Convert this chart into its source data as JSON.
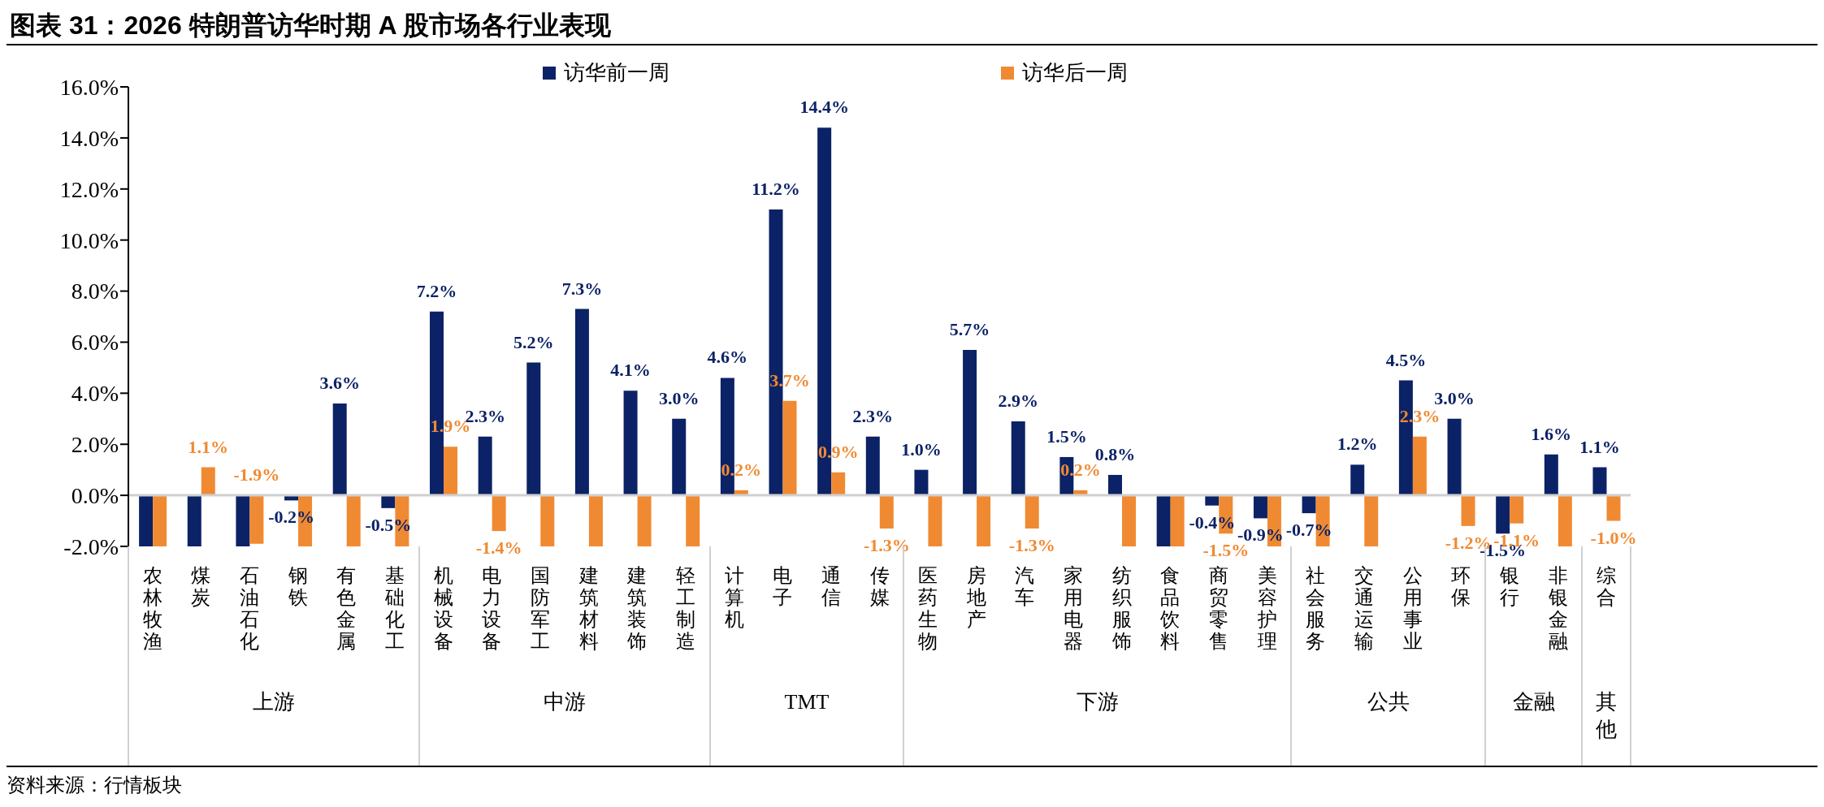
{
  "chart_data": {
    "type": "bar",
    "title": "图表 31：2026 特朗普访华时期 A 股市场各行业表现",
    "categories": [
      "农林牧渔",
      "煤炭",
      "石油石化",
      "钢铁",
      "有色金属",
      "基础化工",
      "机械设备",
      "电力设备",
      "国防军工",
      "建筑材料",
      "建筑装饰",
      "轻工制造",
      "计算机",
      "电子",
      "通信",
      "传媒",
      "医药生物",
      "房地产",
      "汽车",
      "家用电器",
      "纺织服饰",
      "食品饮料",
      "商贸零售",
      "美容护理",
      "社会服务",
      "交通运输",
      "公用事业",
      "环保",
      "银行",
      "非银金融",
      "综合"
    ],
    "series": [
      {
        "name": "访华前一周",
        "color": "#0c2266",
        "values": [
          -2,
          -2,
          -2,
          -0.2,
          3.6,
          -0.5,
          7.2,
          2.3,
          5.2,
          7.3,
          4.1,
          3.0,
          4.6,
          11.2,
          14.4,
          2.3,
          1.0,
          5.7,
          2.9,
          1.5,
          0.8,
          -2,
          -0.4,
          -0.9,
          -0.7,
          1.2,
          4.5,
          3.0,
          -1.5,
          1.6,
          1.1
        ],
        "value_labels": [
          null,
          null,
          null,
          "-0.2%",
          "3.6%",
          "-0.5%",
          "7.2%",
          "2.3%",
          "5.2%",
          "7.3%",
          "4.1%",
          "3.0%",
          "4.6%",
          "11.2%",
          "14.4%",
          "2.3%",
          "1.0%",
          "5.7%",
          "2.9%",
          "1.5%",
          "0.8%",
          null,
          "-0.4%",
          "-0.9%",
          "-0.7%",
          "1.2%",
          "4.5%",
          "3.0%",
          "-1.5%",
          "1.6%",
          "1.1%"
        ]
      },
      {
        "name": "访华后一周",
        "color": "#f08a32",
        "values": [
          -2,
          1.1,
          -1.9,
          -2,
          -2,
          -2,
          1.9,
          -1.4,
          -2,
          -2,
          -2,
          -2,
          0.2,
          3.7,
          0.9,
          -1.3,
          -2,
          -2,
          -1.3,
          0.2,
          -2,
          -2,
          -1.5,
          -2,
          -2,
          -2,
          2.3,
          -1.2,
          -1.1,
          -2,
          -1.0
        ],
        "value_labels": [
          null,
          "1.1%",
          "-1.9%",
          null,
          null,
          null,
          "1.9%",
          "-1.4%",
          null,
          null,
          null,
          null,
          "0.2%",
          "3.7%",
          "0.9%",
          "-1.3%",
          null,
          null,
          "-1.3%",
          "0.2%",
          null,
          null,
          "-1.5%",
          null,
          null,
          null,
          "2.3%",
          "-1.2%",
          "-1.1%",
          null,
          "-1.0%"
        ]
      }
    ],
    "ylim": [
      -2,
      16
    ],
    "yticks": [
      {
        "value": -2,
        "label": "-2.0%"
      },
      {
        "value": 0,
        "label": "0.0%"
      },
      {
        "value": 2,
        "label": "2.0%"
      },
      {
        "value": 4,
        "label": "4.0%"
      },
      {
        "value": 6,
        "label": "6.0%"
      },
      {
        "value": 8,
        "label": "8.0%"
      },
      {
        "value": 10,
        "label": "10.0%"
      },
      {
        "value": 12,
        "label": "12.0%"
      },
      {
        "value": 14,
        "label": "14.0%"
      },
      {
        "value": 16,
        "label": "16.0%"
      }
    ],
    "grid": false,
    "ref_lines": [
      {
        "axis": "y",
        "value": 0,
        "color": "#d0d0d0"
      }
    ],
    "legend": "top",
    "annotations": [
      "上游",
      "中游",
      "TMT",
      "下游",
      "公共",
      "金融",
      "其他",
      "资料来源：行情板块"
    ]
  }
}
